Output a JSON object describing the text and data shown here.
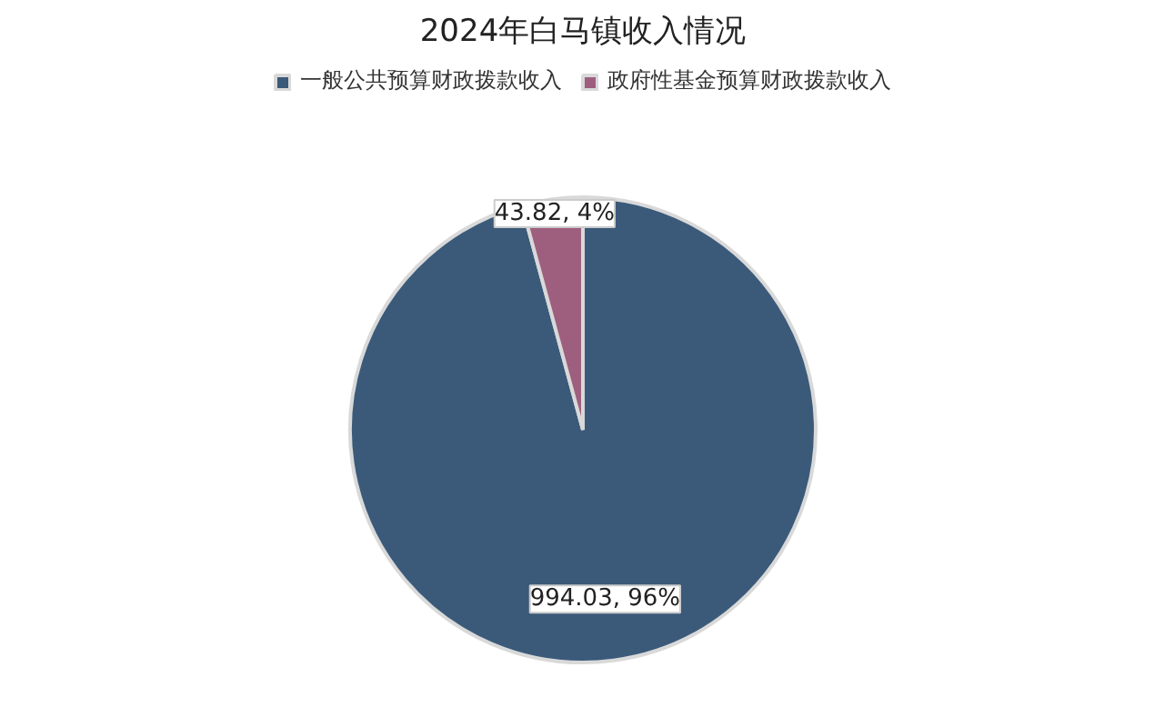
{
  "chart_data": {
    "type": "pie",
    "title": "2024年白马镇收入情况",
    "categories": [
      "一般公共预算财政拨款收入",
      "政府性基金预算财政拨款收入"
    ],
    "values": [
      994.03,
      43.82
    ],
    "colors": [
      "#3b5a7a",
      "#9e5f7e"
    ],
    "value_labels": [
      "994.03, 96%",
      "43.82, 4%"
    ],
    "legend": "top"
  }
}
